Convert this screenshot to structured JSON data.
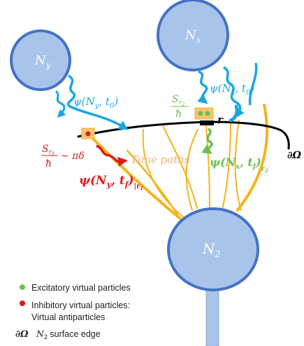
{
  "nodes": {
    "ny": {
      "label": "N",
      "sub": "y"
    },
    "nx": {
      "label": "N",
      "sub": "x"
    },
    "n2": {
      "label": "N",
      "sub": "2"
    }
  },
  "labels": {
    "psi_ny_t0": {
      "prefix": "ψ(N",
      "sub1": "y",
      "mid": ", t",
      "sub2": "0",
      "suffix": ")"
    },
    "psi_nx_t0": {
      "prefix": "ψ(N",
      "sub1": "x",
      "mid": ", t",
      "sub2": "0",
      "suffix": ")"
    },
    "sr2_num": {
      "main": "S",
      "sub": "r",
      "subsub": "2"
    },
    "sr2_den": "ħ",
    "sr1_num": {
      "main": "S",
      "sub": "r",
      "subsub": "1"
    },
    "sr1_den": "ħ",
    "pi_delta": "− πδ",
    "r_label": "r",
    "dOmega": "∂Ω",
    "time_paths": "Time paths",
    "psi_ny_tf": {
      "prefix": "ψ(N",
      "sub1": "y",
      "mid": ", t",
      "sub2": "f",
      "suffix": ")",
      "eval": "|r",
      "eval_sub": "1"
    },
    "psi_nx_tf": {
      "prefix": "ψ(N",
      "sub1": "x",
      "mid": ", t",
      "sub2": "f",
      "suffix": ")",
      "eval": "r",
      "eval_sub": "2"
    }
  },
  "legend": {
    "excitatory": "Excitatory virtual particles",
    "inhibitory_line1": "Inhibitory virtual particles:",
    "inhibitory_line2": "Virtual antiparticles",
    "surface_symbol": "∂Ω",
    "surface_text_n": "N",
    "surface_text_sub": "2",
    "surface_text_rest": " surface edge"
  },
  "colors": {
    "node_fill": "#a9c4ea",
    "node_stroke": "#4472c4",
    "blue_arrow": "#1aa7e0",
    "red": "#e01b1b",
    "green": "#6cc04a",
    "orange": "#f4b41a",
    "orange_text": "#f0b27a",
    "black": "#000000"
  }
}
